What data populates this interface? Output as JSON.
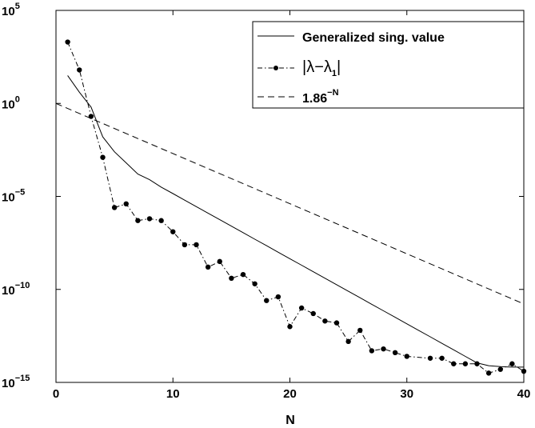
{
  "chart_data": {
    "type": "line",
    "xlabel": "N",
    "ylabel": "",
    "title": "",
    "xlim": [
      0,
      40
    ],
    "ylim_log10": [
      -15,
      5
    ],
    "y_scale": "log",
    "grid": false,
    "legend_placement": "top-right",
    "x_ticks": [
      {
        "value": 0,
        "label": "0"
      },
      {
        "value": 10,
        "label": "10"
      },
      {
        "value": 20,
        "label": "20"
      },
      {
        "value": 30,
        "label": "30"
      },
      {
        "value": 40,
        "label": "40"
      }
    ],
    "y_ticks": [
      {
        "log10": 5,
        "base": "10",
        "exp": "5"
      },
      {
        "log10": 0,
        "base": "10",
        "exp": "0"
      },
      {
        "log10": -5,
        "base": "10",
        "exp": "−5"
      },
      {
        "log10": -10,
        "base": "10",
        "exp": "−10"
      },
      {
        "log10": -15,
        "base": "10",
        "exp": "−15"
      }
    ],
    "series": [
      {
        "name": "Generalized sing. value",
        "style": "solid",
        "x": [
          1,
          2,
          3,
          4,
          5,
          6,
          7,
          8,
          9,
          10,
          11,
          12,
          13,
          14,
          15,
          16,
          17,
          18,
          19,
          20,
          21,
          22,
          23,
          24,
          25,
          26,
          27,
          28,
          29,
          30,
          31,
          32,
          33,
          34,
          35,
          36,
          37,
          38,
          39,
          40
        ],
        "log10_y": [
          1.5,
          0.6,
          -0.2,
          -1.8,
          -2.6,
          -3.2,
          -3.8,
          -4.1,
          -4.5,
          -4.85,
          -5.2,
          -5.55,
          -5.9,
          -6.25,
          -6.6,
          -6.95,
          -7.3,
          -7.65,
          -8.0,
          -8.35,
          -8.7,
          -9.05,
          -9.4,
          -9.75,
          -10.1,
          -10.45,
          -10.8,
          -11.15,
          -11.5,
          -11.85,
          -12.2,
          -12.55,
          -12.9,
          -13.25,
          -13.6,
          -13.95,
          -14.1,
          -14.15,
          -14.18,
          -14.18
        ]
      },
      {
        "name": "|λ−λ₁|",
        "name_parts": {
          "bar": "|",
          "lambda": "λ",
          "minus": "−",
          "sub": "1"
        },
        "style": "dashdot-markers",
        "x": [
          1,
          2,
          3,
          4,
          5,
          6,
          7,
          8,
          9,
          10,
          11,
          12,
          13,
          14,
          15,
          16,
          17,
          18,
          19,
          20,
          21,
          22,
          23,
          24,
          25,
          26,
          27,
          28,
          29,
          30,
          32,
          33,
          34,
          35,
          36,
          37,
          38,
          39,
          40
        ],
        "log10_y": [
          3.3,
          1.8,
          -0.7,
          -2.9,
          -5.6,
          -5.4,
          -6.3,
          -6.2,
          -6.3,
          -6.9,
          -7.6,
          -7.6,
          -8.8,
          -8.5,
          -9.4,
          -9.2,
          -9.7,
          -10.6,
          -10.4,
          -12.0,
          -11.0,
          -11.3,
          -11.7,
          -11.8,
          -12.8,
          -12.2,
          -13.3,
          -13.2,
          -13.4,
          -13.6,
          -13.7,
          -13.7,
          -14.0,
          -14.0,
          -14.0,
          -14.5,
          -14.3,
          -14.0,
          -14.4
        ]
      },
      {
        "name": "1.86⁻ᴺ",
        "name_parts": {
          "base": "1.86",
          "exp": "−N"
        },
        "style": "dashed",
        "x": [
          0,
          40
        ],
        "log10_y": [
          0.0,
          -10.78
        ]
      }
    ]
  }
}
